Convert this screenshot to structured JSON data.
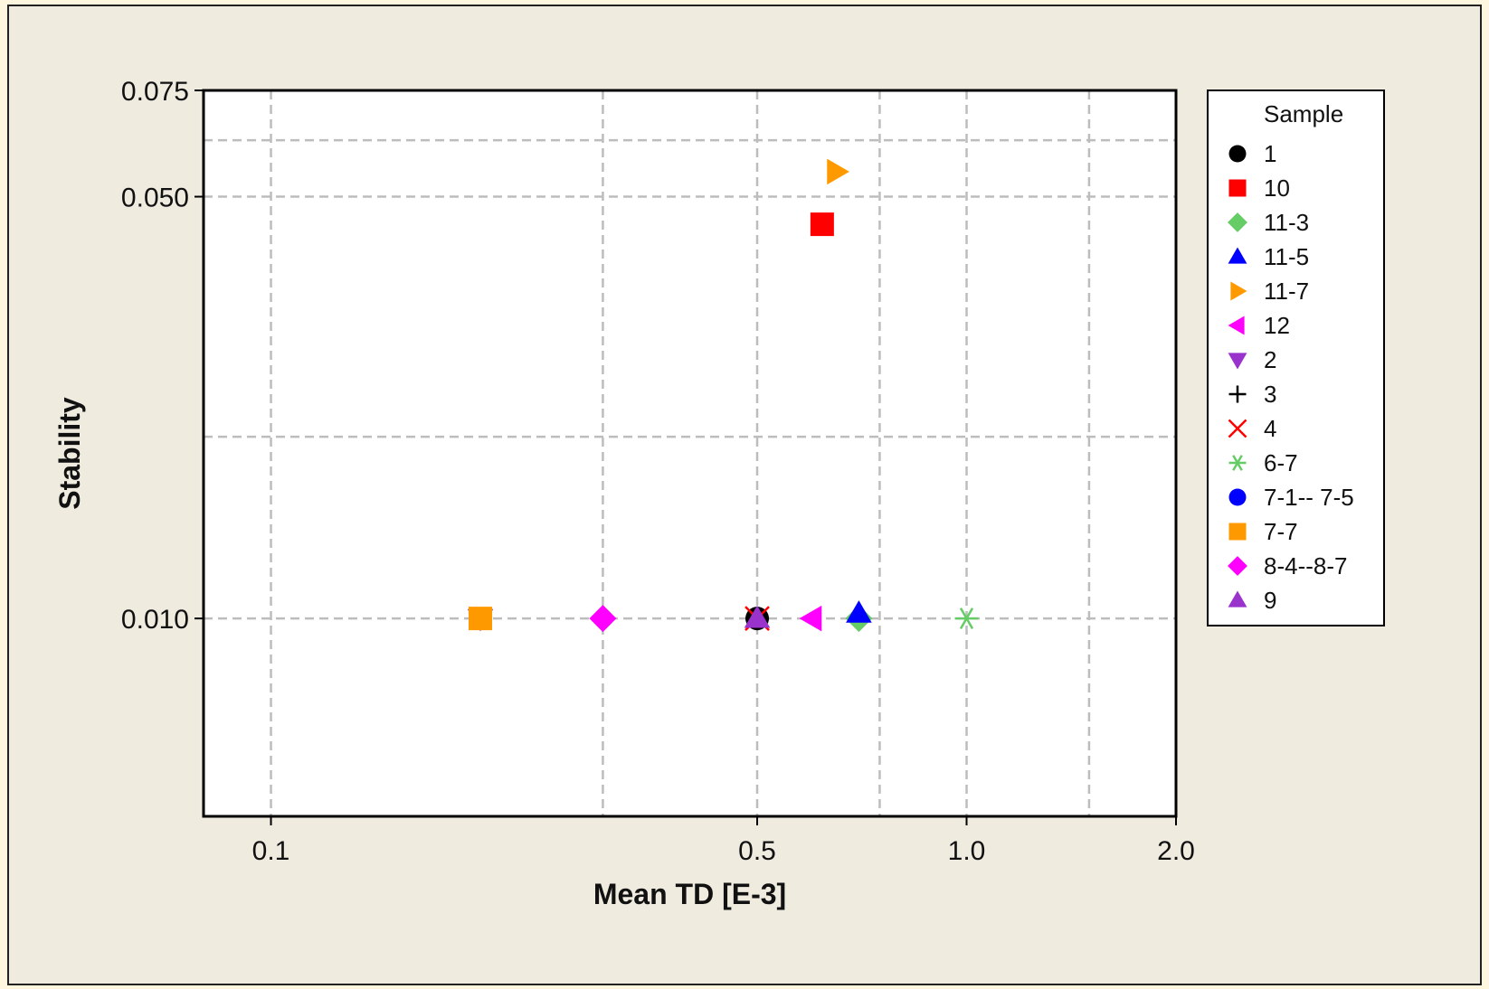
{
  "chart_data": {
    "type": "scatter",
    "title": "",
    "xlabel": "Mean TD [E-3]",
    "ylabel": "Stability",
    "x_scale": "log",
    "y_scale": "log",
    "xlim": [
      0.08,
      2.0
    ],
    "ylim": [
      0.0047,
      0.075
    ],
    "x_ticks": [
      {
        "value": 0.1,
        "label": "0.1"
      },
      {
        "value": 0.5,
        "label": "0.5"
      },
      {
        "value": 1.0,
        "label": "1.0"
      },
      {
        "value": 2.0,
        "label": "2.0"
      }
    ],
    "y_ticks": [
      {
        "value": 0.01,
        "label": "0.010"
      },
      {
        "value": 0.05,
        "label": "0.050"
      },
      {
        "value": 0.075,
        "label": "0.075"
      }
    ],
    "x_gridlines": [
      0.1,
      0.3,
      0.5,
      0.75,
      1.0,
      1.5
    ],
    "y_gridlines": [
      0.01,
      0.02,
      0.05,
      0.062
    ],
    "grid": true,
    "legend_title": "Sample",
    "legend_position": "right",
    "series": [
      {
        "name": "1",
        "marker": "circle",
        "color": "#000000",
        "points": [
          {
            "x": 0.5,
            "y": 0.01
          }
        ]
      },
      {
        "name": "10",
        "marker": "square",
        "color": "#ff0000",
        "points": [
          {
            "x": 0.62,
            "y": 0.045
          }
        ]
      },
      {
        "name": "11-3",
        "marker": "diamond",
        "color": "#66cc66",
        "points": [
          {
            "x": 0.7,
            "y": 0.01
          }
        ]
      },
      {
        "name": "11-5",
        "marker": "triangle-up",
        "color": "#0000ff",
        "points": [
          {
            "x": 0.7,
            "y": 0.0102
          }
        ]
      },
      {
        "name": "11-7",
        "marker": "triangle-right",
        "color": "#ff9900",
        "points": [
          {
            "x": 0.65,
            "y": 0.055
          }
        ]
      },
      {
        "name": "12",
        "marker": "triangle-left",
        "color": "#ff00ff",
        "points": [
          {
            "x": 0.6,
            "y": 0.01
          }
        ]
      },
      {
        "name": "2",
        "marker": "triangle-down",
        "color": "#9933cc",
        "points": [
          {
            "x": 0.2,
            "y": 0.01
          }
        ]
      },
      {
        "name": "3",
        "marker": "plus",
        "color": "#000000",
        "points": [
          {
            "x": 0.5,
            "y": 0.01
          }
        ]
      },
      {
        "name": "4",
        "marker": "x",
        "color": "#ff0000",
        "points": [
          {
            "x": 0.5,
            "y": 0.01
          }
        ]
      },
      {
        "name": "6-7",
        "marker": "asterisk",
        "color": "#66cc66",
        "points": [
          {
            "x": 1.0,
            "y": 0.01
          }
        ]
      },
      {
        "name": "7-1-- 7-5",
        "marker": "circle",
        "color": "#0000ff",
        "points": []
      },
      {
        "name": "7-7",
        "marker": "square",
        "color": "#ff9900",
        "points": [
          {
            "x": 0.2,
            "y": 0.01
          }
        ]
      },
      {
        "name": "8-4--8-7",
        "marker": "diamond",
        "color": "#ff00ff",
        "points": [
          {
            "x": 0.3,
            "y": 0.01
          }
        ]
      },
      {
        "name": "9",
        "marker": "triangle-up",
        "color": "#9933cc",
        "points": [
          {
            "x": 0.5,
            "y": 0.01
          }
        ]
      }
    ]
  }
}
